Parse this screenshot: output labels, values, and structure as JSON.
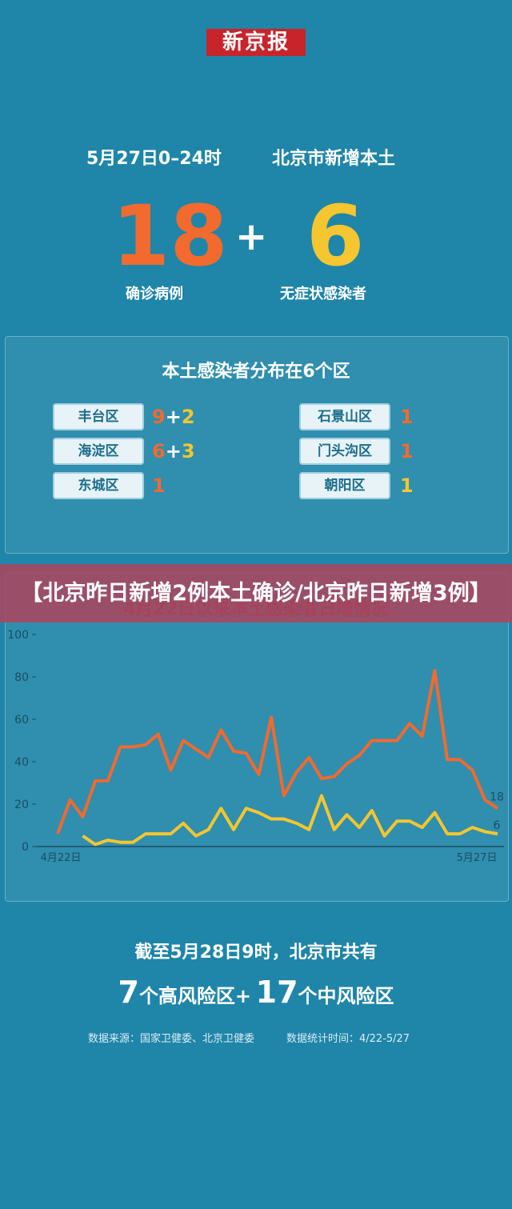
{
  "header": {
    "logo": "新京报",
    "period": "5月27日0–24时",
    "region": "北京市新增本土"
  },
  "summary": {
    "confirmed": 18,
    "plus": "+",
    "asymptomatic": 6,
    "confirmed_label": "确诊病例",
    "asymptomatic_label": "无症状感染者"
  },
  "districts": {
    "title": "本土感染者分布在6个区",
    "items": [
      {
        "name": "丰台区",
        "confirmed": 9,
        "asymptomatic": 2
      },
      {
        "name": "海淀区",
        "confirmed": 6,
        "asymptomatic": 3
      },
      {
        "name": "东城区",
        "confirmed": 1
      },
      {
        "name": "石景山区",
        "confirmed": 1
      },
      {
        "name": "门头沟区",
        "confirmed": 1
      },
      {
        "name": "朝阳区",
        "asymptomatic": 1
      }
    ]
  },
  "banner": "【北京昨日新增2例本土确诊/北京昨日新增3例】",
  "chart_data": {
    "type": "line",
    "title": "4月22日以来本土感染者日增情况",
    "categories": [
      "4月22日",
      null,
      null,
      null,
      null,
      null,
      null,
      null,
      null,
      null,
      null,
      null,
      null,
      null,
      null,
      null,
      null,
      null,
      null,
      null,
      null,
      null,
      null,
      null,
      null,
      null,
      null,
      null,
      null,
      null,
      null,
      null,
      null,
      null,
      null,
      "5月27日"
    ],
    "series": [
      {
        "color": "#f26a2e",
        "values": [
          6,
          22,
          14,
          31,
          31,
          47,
          47,
          48,
          53,
          36,
          50,
          46,
          42,
          55,
          45,
          44,
          34,
          61,
          24,
          35,
          42,
          32,
          33,
          39,
          43,
          50,
          50,
          50,
          58,
          52,
          83,
          41,
          41,
          36,
          22,
          18
        ]
      },
      {
        "color": "#f5c62f",
        "values": [
          null,
          null,
          5,
          1,
          3,
          2,
          2,
          6,
          6,
          6,
          11,
          5,
          8,
          18,
          8,
          18,
          16,
          13,
          13,
          11,
          8,
          24,
          8,
          15,
          9,
          17,
          5,
          12,
          12,
          9,
          16,
          6,
          6,
          9,
          7,
          6
        ]
      }
    ],
    "ylim": [
      0,
      100
    ],
    "yticks": [
      0,
      20,
      40,
      60,
      80,
      100
    ],
    "grid": false
  },
  "footer": {
    "line1": "截至5月28日9时，北京市共有",
    "high_count": 7,
    "high_label": "个高风险区+",
    "mid_count": 17,
    "mid_label": "个中风险区",
    "source": "数据来源：国家卫健委、北京卫健委",
    "period": "数据统计时间：4/22-5/27"
  }
}
